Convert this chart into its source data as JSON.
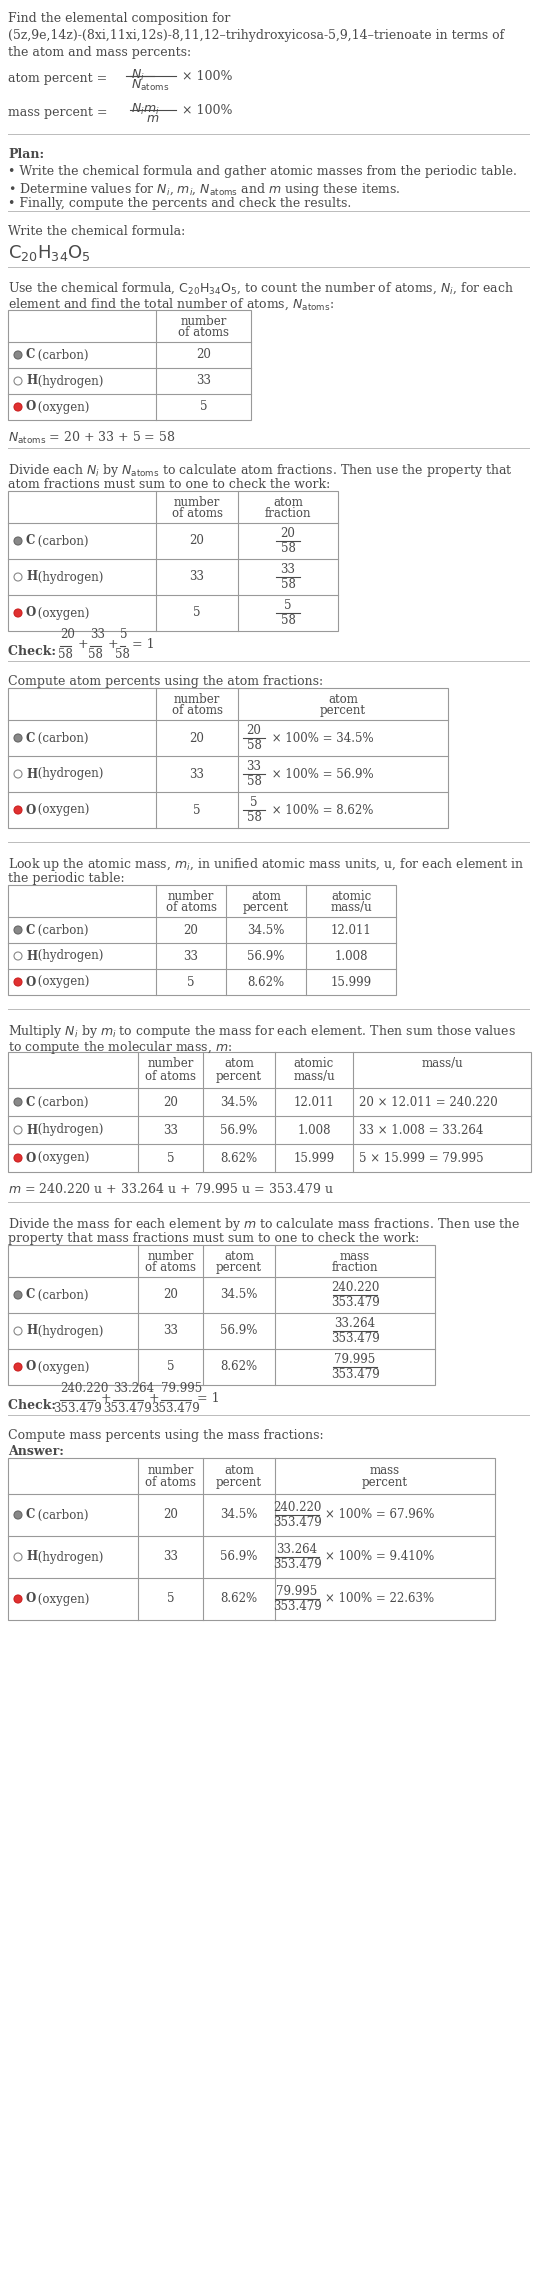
{
  "bg_color": "#ffffff",
  "text_color": "#4a4a4a",
  "element_labels": [
    "C (carbon)",
    "H (hydrogen)",
    "O (oxygen)"
  ],
  "element_bold": [
    "C",
    "H",
    "O"
  ],
  "element_colors": [
    "#888888",
    "#ffffff",
    "#e03030"
  ],
  "element_border_colors": [
    "#666666",
    "#888888",
    "#cc2020"
  ],
  "n_atoms": [
    "20",
    "33",
    "5"
  ],
  "atom_percents": [
    "34.5%",
    "56.9%",
    "8.62%"
  ],
  "atomic_masses": [
    "12.011",
    "1.008",
    "15.999"
  ],
  "masses_u": [
    "240.220",
    "33.264",
    "79.995"
  ],
  "mass_exprs": [
    "20 × 12.011 = 240.220",
    "33 × 1.008 = 33.264",
    "5 × 15.999 = 79.995"
  ],
  "mass_total": "353.479",
  "mass_percents": [
    "67.96%",
    "9.410%",
    "22.63%"
  ]
}
